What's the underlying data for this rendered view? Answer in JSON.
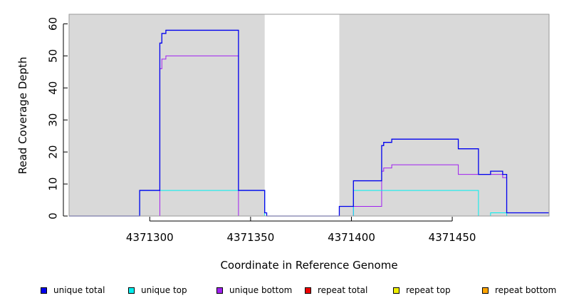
{
  "chart_data": {
    "type": "line",
    "title": "",
    "xlabel": "Coordinate in Reference Genome",
    "ylabel": "Read Coverage Depth",
    "xlim": [
      4371260,
      4371498
    ],
    "ylim": [
      0,
      63
    ],
    "x_ticks": [
      4371300,
      4371350,
      4371400,
      4371450
    ],
    "y_ticks": [
      0,
      10,
      20,
      30,
      40,
      50,
      60
    ],
    "grid": false,
    "background": "#d9d9d9",
    "shaded_regions": [
      [
        4371260,
        4371357
      ],
      [
        4371394,
        4371498
      ]
    ],
    "legend_position": "bottom",
    "series": [
      {
        "name": "unique total",
        "color": "#0000ee",
        "steps": [
          [
            4371260,
            0
          ],
          [
            4371295,
            8
          ],
          [
            4371305,
            54
          ],
          [
            4371306,
            57
          ],
          [
            4371308,
            58
          ],
          [
            4371344,
            8
          ],
          [
            4371357,
            1
          ],
          [
            4371358,
            0
          ],
          [
            4371394,
            3
          ],
          [
            4371401,
            11
          ],
          [
            4371415,
            22
          ],
          [
            4371416,
            23
          ],
          [
            4371420,
            24
          ],
          [
            4371453,
            21
          ],
          [
            4371463,
            13
          ],
          [
            4371469,
            14
          ],
          [
            4371475,
            13
          ],
          [
            4371477,
            1
          ],
          [
            4371498,
            1
          ]
        ]
      },
      {
        "name": "unique top",
        "color": "#00eeee",
        "steps": [
          [
            4371260,
            0
          ],
          [
            4371295,
            8
          ],
          [
            4371357,
            0
          ],
          [
            4371401,
            8
          ],
          [
            4371463,
            0
          ],
          [
            4371469,
            1
          ],
          [
            4371477,
            0
          ],
          [
            4371498,
            0
          ]
        ]
      },
      {
        "name": "unique bottom",
        "color": "#a020f0",
        "steps": [
          [
            4371260,
            0
          ],
          [
            4371305,
            46
          ],
          [
            4371306,
            49
          ],
          [
            4371308,
            50
          ],
          [
            4371344,
            0
          ],
          [
            4371394,
            0
          ],
          [
            4371401,
            3
          ],
          [
            4371415,
            14
          ],
          [
            4371416,
            15
          ],
          [
            4371420,
            16
          ],
          [
            4371453,
            13
          ],
          [
            4371475,
            12
          ],
          [
            4371477,
            0
          ],
          [
            4371498,
            0
          ]
        ]
      },
      {
        "name": "repeat total",
        "color": "#ee0000",
        "steps": []
      },
      {
        "name": "repeat top",
        "color": "#eeee00",
        "steps": []
      },
      {
        "name": "repeat bottom",
        "color": "#ffa500",
        "steps": [
          [
            4371305,
            0
          ],
          [
            4371344,
            0
          ]
        ]
      }
    ]
  }
}
